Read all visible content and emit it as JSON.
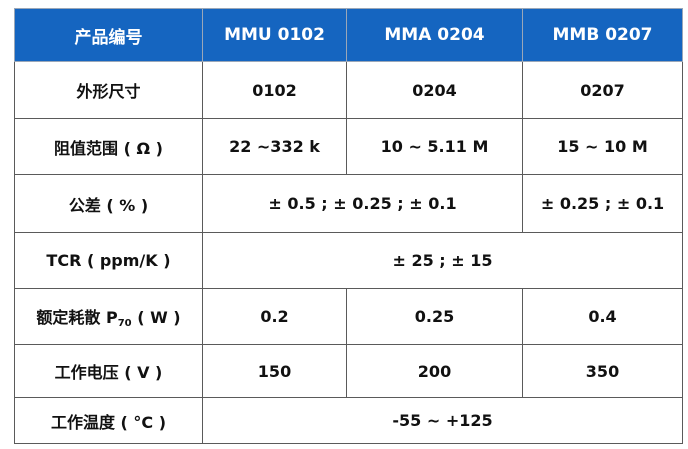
{
  "header": {
    "label": "产品编号",
    "models": [
      "MMU 0102",
      "MMA 0204",
      "MMB 0207"
    ]
  },
  "rows": {
    "size": {
      "label": "外形尺寸",
      "values": [
        "0102",
        "0204",
        "0207"
      ]
    },
    "resistance": {
      "label": "阻值范围 ( Ω )",
      "values": [
        "22 ~332 k",
        "10 ~ 5.11 M",
        "15 ~ 10 M"
      ]
    },
    "tolerance": {
      "label": "公差 ( % )",
      "values": [
        "± 0.5 ; ± 0.25 ; ± 0.1",
        "± 0.25 ; ± 0.1"
      ]
    },
    "tcr": {
      "label": "TCR ( ppm/K )",
      "value": "± 25 ; ± 15"
    },
    "power": {
      "label_main": "额定耗散 P",
      "label_sub": "70",
      "label_unit": " ( W )",
      "values": [
        "0.2",
        "0.25",
        "0.4"
      ]
    },
    "voltage": {
      "label": "工作电压 ( V )",
      "values": [
        "150",
        "200",
        "350"
      ]
    },
    "temperature": {
      "label": "工作温度 ( °C )",
      "value": "-55 ~ +125"
    }
  },
  "colors": {
    "header_bg": "#1565C0",
    "header_text": "#ffffff",
    "border": "#5a5a5a"
  }
}
